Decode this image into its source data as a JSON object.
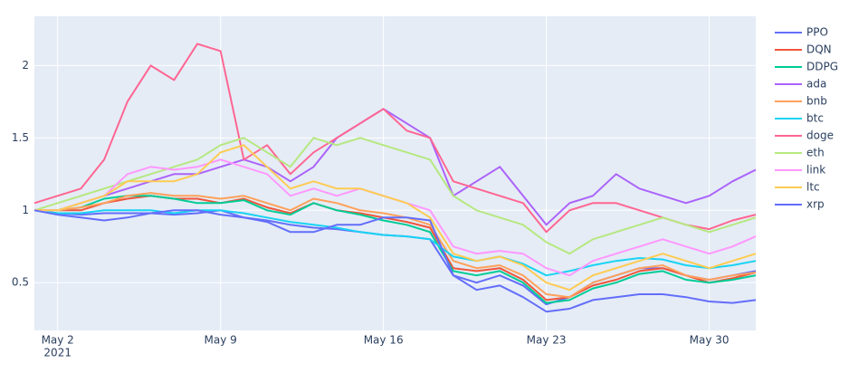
{
  "chart_data": {
    "type": "line",
    "x": [
      "2021-05-01",
      "2021-05-02",
      "2021-05-03",
      "2021-05-04",
      "2021-05-05",
      "2021-05-06",
      "2021-05-07",
      "2021-05-08",
      "2021-05-09",
      "2021-05-10",
      "2021-05-11",
      "2021-05-12",
      "2021-05-13",
      "2021-05-14",
      "2021-05-15",
      "2021-05-16",
      "2021-05-17",
      "2021-05-18",
      "2021-05-19",
      "2021-05-20",
      "2021-05-21",
      "2021-05-22",
      "2021-05-23",
      "2021-05-24",
      "2021-05-25",
      "2021-05-26",
      "2021-05-27",
      "2021-05-28",
      "2021-05-29",
      "2021-05-30",
      "2021-05-31",
      "2021-06-01"
    ],
    "xlim": [
      "2021-05-01",
      "2021-06-01"
    ],
    "xticks": [
      {
        "value": "2021-05-02",
        "label": "May 2"
      },
      {
        "value": "2021-05-09",
        "label": "May 9"
      },
      {
        "value": "2021-05-16",
        "label": "May 16"
      },
      {
        "value": "2021-05-23",
        "label": "May 23"
      },
      {
        "value": "2021-05-30",
        "label": "May 30"
      }
    ],
    "x_year_label": "2021",
    "ylim": [
      0.17,
      2.34
    ],
    "yticks": [
      0.5,
      1,
      1.5,
      2
    ],
    "grid": true,
    "legend": "right",
    "series": [
      {
        "name": "PPO",
        "color": "#636efa",
        "values": [
          1.0,
          0.98,
          0.97,
          0.98,
          0.98,
          0.98,
          0.97,
          0.98,
          1.0,
          0.95,
          0.93,
          0.9,
          0.88,
          0.87,
          0.85,
          0.83,
          0.82,
          0.8,
          0.55,
          0.5,
          0.55,
          0.48,
          0.35,
          0.4,
          0.5,
          0.55,
          0.6,
          0.6,
          0.55,
          0.52,
          0.55,
          0.58
        ]
      },
      {
        "name": "DQN",
        "color": "#EF553B",
        "values": [
          1.0,
          1.0,
          1.0,
          1.05,
          1.08,
          1.1,
          1.08,
          1.08,
          1.05,
          1.08,
          1.02,
          0.98,
          1.05,
          1.0,
          0.98,
          0.95,
          0.92,
          0.88,
          0.6,
          0.58,
          0.6,
          0.52,
          0.38,
          0.4,
          0.48,
          0.52,
          0.58,
          0.6,
          0.55,
          0.5,
          0.53,
          0.57
        ]
      },
      {
        "name": "DDPG",
        "color": "#00cc96",
        "values": [
          1.0,
          1.0,
          1.02,
          1.08,
          1.1,
          1.1,
          1.08,
          1.05,
          1.05,
          1.07,
          1.0,
          0.97,
          1.05,
          1.0,
          0.97,
          0.93,
          0.9,
          0.85,
          0.58,
          0.55,
          0.58,
          0.5,
          0.36,
          0.38,
          0.46,
          0.5,
          0.56,
          0.58,
          0.52,
          0.5,
          0.52,
          0.55
        ]
      },
      {
        "name": "ada",
        "color": "#ab63fa",
        "values": [
          1.0,
          1.0,
          1.05,
          1.1,
          1.15,
          1.2,
          1.25,
          1.25,
          1.3,
          1.35,
          1.3,
          1.2,
          1.3,
          1.5,
          1.6,
          1.7,
          1.6,
          1.5,
          1.1,
          1.2,
          1.3,
          1.1,
          0.9,
          1.05,
          1.1,
          1.25,
          1.15,
          1.1,
          1.05,
          1.1,
          1.2,
          1.28
        ]
      },
      {
        "name": "bnb",
        "color": "#FFA15A",
        "values": [
          1.0,
          1.0,
          1.02,
          1.05,
          1.1,
          1.12,
          1.1,
          1.1,
          1.08,
          1.1,
          1.05,
          1.0,
          1.08,
          1.05,
          1.0,
          0.98,
          0.95,
          0.9,
          0.65,
          0.6,
          0.62,
          0.55,
          0.42,
          0.4,
          0.5,
          0.55,
          0.6,
          0.62,
          0.55,
          0.52,
          0.55,
          0.57
        ]
      },
      {
        "name": "btc",
        "color": "#19d3f3",
        "values": [
          1.0,
          0.98,
          0.98,
          1.0,
          1.0,
          1.0,
          0.98,
          1.0,
          1.0,
          0.98,
          0.95,
          0.92,
          0.9,
          0.88,
          0.85,
          0.83,
          0.82,
          0.8,
          0.68,
          0.65,
          0.68,
          0.63,
          0.55,
          0.58,
          0.62,
          0.65,
          0.67,
          0.66,
          0.62,
          0.6,
          0.62,
          0.65
        ]
      },
      {
        "name": "doge",
        "color": "#FF6692",
        "values": [
          1.05,
          1.1,
          1.15,
          1.35,
          1.75,
          2.0,
          1.9,
          2.15,
          2.1,
          1.35,
          1.45,
          1.25,
          1.4,
          1.5,
          1.6,
          1.7,
          1.55,
          1.5,
          1.2,
          1.15,
          1.1,
          1.05,
          0.85,
          1.0,
          1.05,
          1.05,
          1.0,
          0.95,
          0.9,
          0.87,
          0.93,
          0.97
        ]
      },
      {
        "name": "eth",
        "color": "#B6E880",
        "values": [
          1.0,
          1.05,
          1.1,
          1.15,
          1.2,
          1.25,
          1.3,
          1.35,
          1.45,
          1.5,
          1.4,
          1.3,
          1.5,
          1.45,
          1.5,
          1.45,
          1.4,
          1.35,
          1.1,
          1.0,
          0.95,
          0.9,
          0.78,
          0.7,
          0.8,
          0.85,
          0.9,
          0.95,
          0.9,
          0.85,
          0.9,
          0.95
        ]
      },
      {
        "name": "link",
        "color": "#FF97FF",
        "values": [
          1.0,
          1.0,
          1.05,
          1.1,
          1.25,
          1.3,
          1.28,
          1.3,
          1.35,
          1.3,
          1.25,
          1.1,
          1.15,
          1.1,
          1.15,
          1.1,
          1.05,
          1.0,
          0.75,
          0.7,
          0.72,
          0.7,
          0.6,
          0.55,
          0.65,
          0.7,
          0.75,
          0.8,
          0.75,
          0.7,
          0.75,
          0.82
        ]
      },
      {
        "name": "ltc",
        "color": "#FECB52",
        "values": [
          1.0,
          1.0,
          1.05,
          1.1,
          1.2,
          1.2,
          1.2,
          1.25,
          1.4,
          1.45,
          1.3,
          1.15,
          1.2,
          1.15,
          1.15,
          1.1,
          1.05,
          0.95,
          0.7,
          0.65,
          0.68,
          0.62,
          0.5,
          0.45,
          0.55,
          0.6,
          0.65,
          0.7,
          0.65,
          0.6,
          0.65,
          0.7
        ]
      },
      {
        "name": "xrp",
        "color": "#636efa",
        "values": [
          1.0,
          0.97,
          0.95,
          0.93,
          0.95,
          0.98,
          1.0,
          1.0,
          0.97,
          0.95,
          0.92,
          0.85,
          0.85,
          0.9,
          0.9,
          0.95,
          0.95,
          0.93,
          0.55,
          0.45,
          0.48,
          0.4,
          0.3,
          0.32,
          0.38,
          0.4,
          0.42,
          0.42,
          0.4,
          0.37,
          0.36,
          0.38
        ]
      }
    ]
  }
}
